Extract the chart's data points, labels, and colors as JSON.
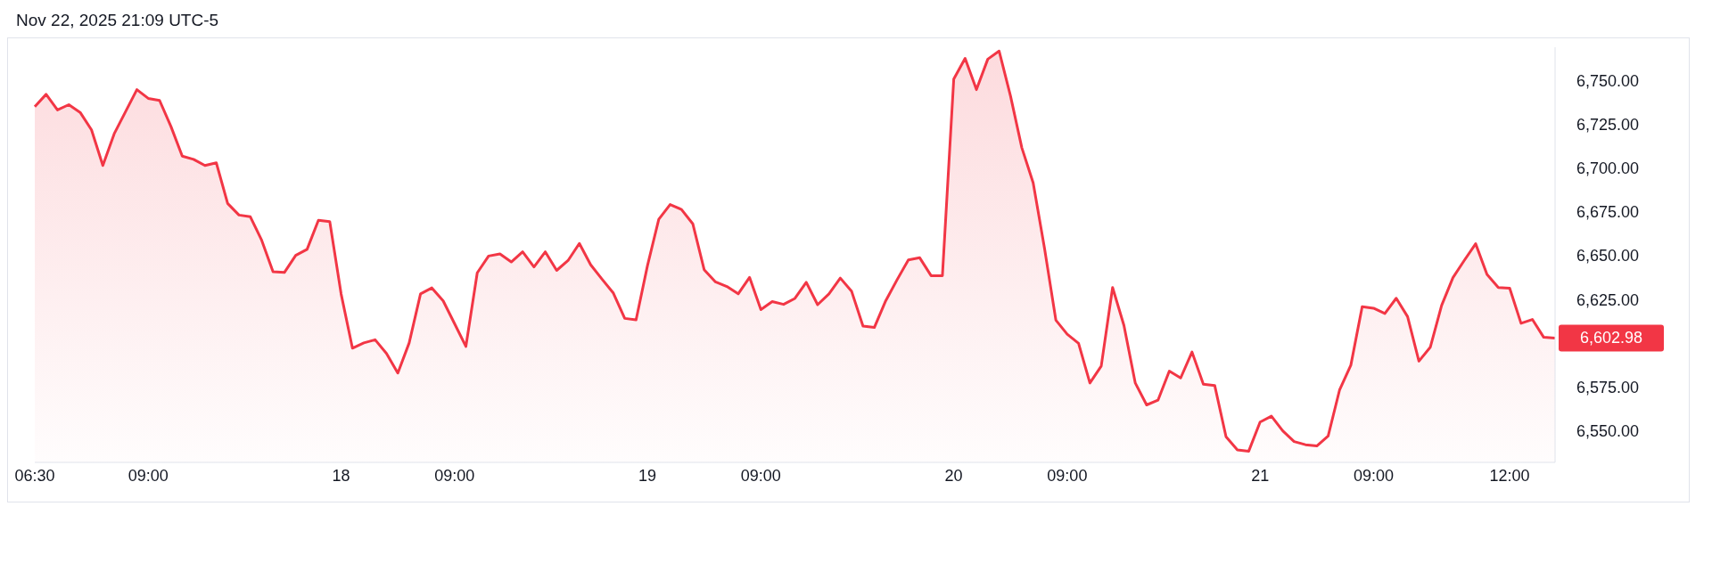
{
  "chart_data": {
    "type": "area",
    "title": "Nov 22, 2025 21:09 UTC-5",
    "categories": [
      "06:30",
      null,
      null,
      null,
      null,
      null,
      null,
      null,
      null,
      null,
      "09:00",
      null,
      null,
      null,
      null,
      null,
      null,
      null,
      null,
      null,
      null,
      null,
      null,
      null,
      null,
      null,
      null,
      "18",
      null,
      null,
      null,
      null,
      null,
      null,
      null,
      null,
      null,
      "09:00",
      null,
      null,
      null,
      null,
      null,
      null,
      null,
      null,
      null,
      null,
      null,
      null,
      null,
      null,
      null,
      null,
      "19",
      null,
      null,
      null,
      null,
      null,
      null,
      null,
      null,
      null,
      "09:00",
      null,
      null,
      null,
      null,
      null,
      null,
      null,
      null,
      null,
      null,
      null,
      null,
      null,
      null,
      null,
      null,
      "20",
      null,
      null,
      null,
      null,
      null,
      null,
      null,
      null,
      null,
      "09:00",
      null,
      null,
      null,
      null,
      null,
      null,
      null,
      null,
      null,
      null,
      null,
      null,
      null,
      null,
      null,
      null,
      "21",
      null,
      null,
      null,
      null,
      null,
      null,
      null,
      null,
      null,
      "09:00",
      null,
      null,
      null,
      null,
      null,
      null,
      null,
      null,
      null,
      null,
      null,
      "12:00",
      null,
      null,
      null,
      null
    ],
    "series": [
      {
        "color": "#f23645",
        "values": [
          6735.1,
          6742.1,
          6733.2,
          6736.2,
          6731.8,
          6721.8,
          6701.5,
          6719.6,
          6732.2,
          6744.8,
          6739.8,
          6738.6,
          6723.8,
          6706.8,
          6705,
          6701.5,
          6703,
          6679.8,
          6673.2,
          6672.2,
          6658.8,
          6640.8,
          6640.4,
          6650.2,
          6653.6,
          6670.2,
          6669.5,
          6628.2,
          6597.2,
          6600.2,
          6602,
          6594.2,
          6583,
          6600.2,
          6628.2,
          6631.6,
          6624.2,
          6611.2,
          6598.2,
          6640.2,
          6649.8,
          6651,
          6646.4,
          6652.2,
          6643.6,
          6652.2,
          6641.6,
          6647.2,
          6657,
          6644.8,
          6636.6,
          6628.6,
          6614.2,
          6613.4,
          6644.2,
          6670.8,
          6679.2,
          6676.4,
          6668.2,
          6642,
          6635,
          6632.4,
          6628.2,
          6637.6,
          6619.2,
          6623.8,
          6622.2,
          6625.6,
          6634.8,
          6622,
          6628.2,
          6637.2,
          6629.6,
          6609.8,
          6609,
          6624.2,
          6636.2,
          6647.6,
          6648.8,
          6638.6,
          6638.6,
          6750.8,
          6762.6,
          6744.8,
          6762.2,
          6766.8,
          6741.2,
          6711.6,
          6691.6,
          6654.2,
          6613.2,
          6605.2,
          6600,
          6577.3,
          6587,
          6631.8,
          6610.2,
          6577.3,
          6564.8,
          6567.5,
          6584.1,
          6580.2,
          6595,
          6576.6,
          6575.9,
          6546.6,
          6539.1,
          6538.4,
          6555,
          6558.4,
          6550,
          6543.9,
          6542.1,
          6541.4,
          6547.1,
          6573.2,
          6587.5,
          6620.9,
          6620,
          6617,
          6625.7,
          6615.2,
          6589.8,
          6597.7,
          6621.6,
          6637.5,
          6647.3,
          6656.8,
          6639.3,
          6631.8,
          6631.4,
          6611.4,
          6613.6,
          6603.4,
          6602.98
        ],
        "value_labels": [
          null,
          null,
          null,
          null,
          null,
          null,
          null,
          null,
          null,
          null,
          null,
          null,
          null,
          null,
          null,
          null,
          null,
          null,
          null,
          null,
          null,
          null,
          null,
          null,
          null,
          null,
          null,
          null,
          null,
          null,
          null,
          null,
          null,
          null,
          null,
          null,
          null,
          null,
          null,
          null,
          null,
          null,
          null,
          null,
          null,
          null,
          null,
          null,
          null,
          null,
          null,
          null,
          null,
          null,
          null,
          null,
          null,
          null,
          null,
          null,
          null,
          null,
          null,
          null,
          null,
          null,
          null,
          null,
          null,
          null,
          null,
          null,
          null,
          null,
          null,
          null,
          null,
          null,
          null,
          null,
          null,
          null,
          null,
          null,
          null,
          null,
          null,
          null,
          null,
          null,
          null,
          null,
          null,
          null,
          null,
          null,
          null,
          null,
          null,
          null,
          null,
          null,
          null,
          null,
          null,
          null,
          null,
          null,
          null,
          null,
          null,
          null,
          null,
          null,
          null,
          null,
          null,
          null,
          null,
          null,
          null,
          null,
          null,
          null,
          null,
          null,
          null,
          null,
          null,
          null,
          null,
          null,
          null,
          null,
          "6,602.98"
        ]
      }
    ],
    "ylim": [
      6532,
      6769
    ],
    "yticks": [
      {
        "value": 6550,
        "label": "6,550.00"
      },
      {
        "value": 6575,
        "label": "6,575.00"
      },
      {
        "value": 6625,
        "label": "6,625.00"
      },
      {
        "value": 6650,
        "label": "6,650.00"
      },
      {
        "value": 6675,
        "label": "6,675.00"
      },
      {
        "value": 6700,
        "label": "6,700.00"
      },
      {
        "value": 6725,
        "label": "6,725.00"
      },
      {
        "value": 6750,
        "label": "6,750.00"
      }
    ],
    "grid": false
  }
}
